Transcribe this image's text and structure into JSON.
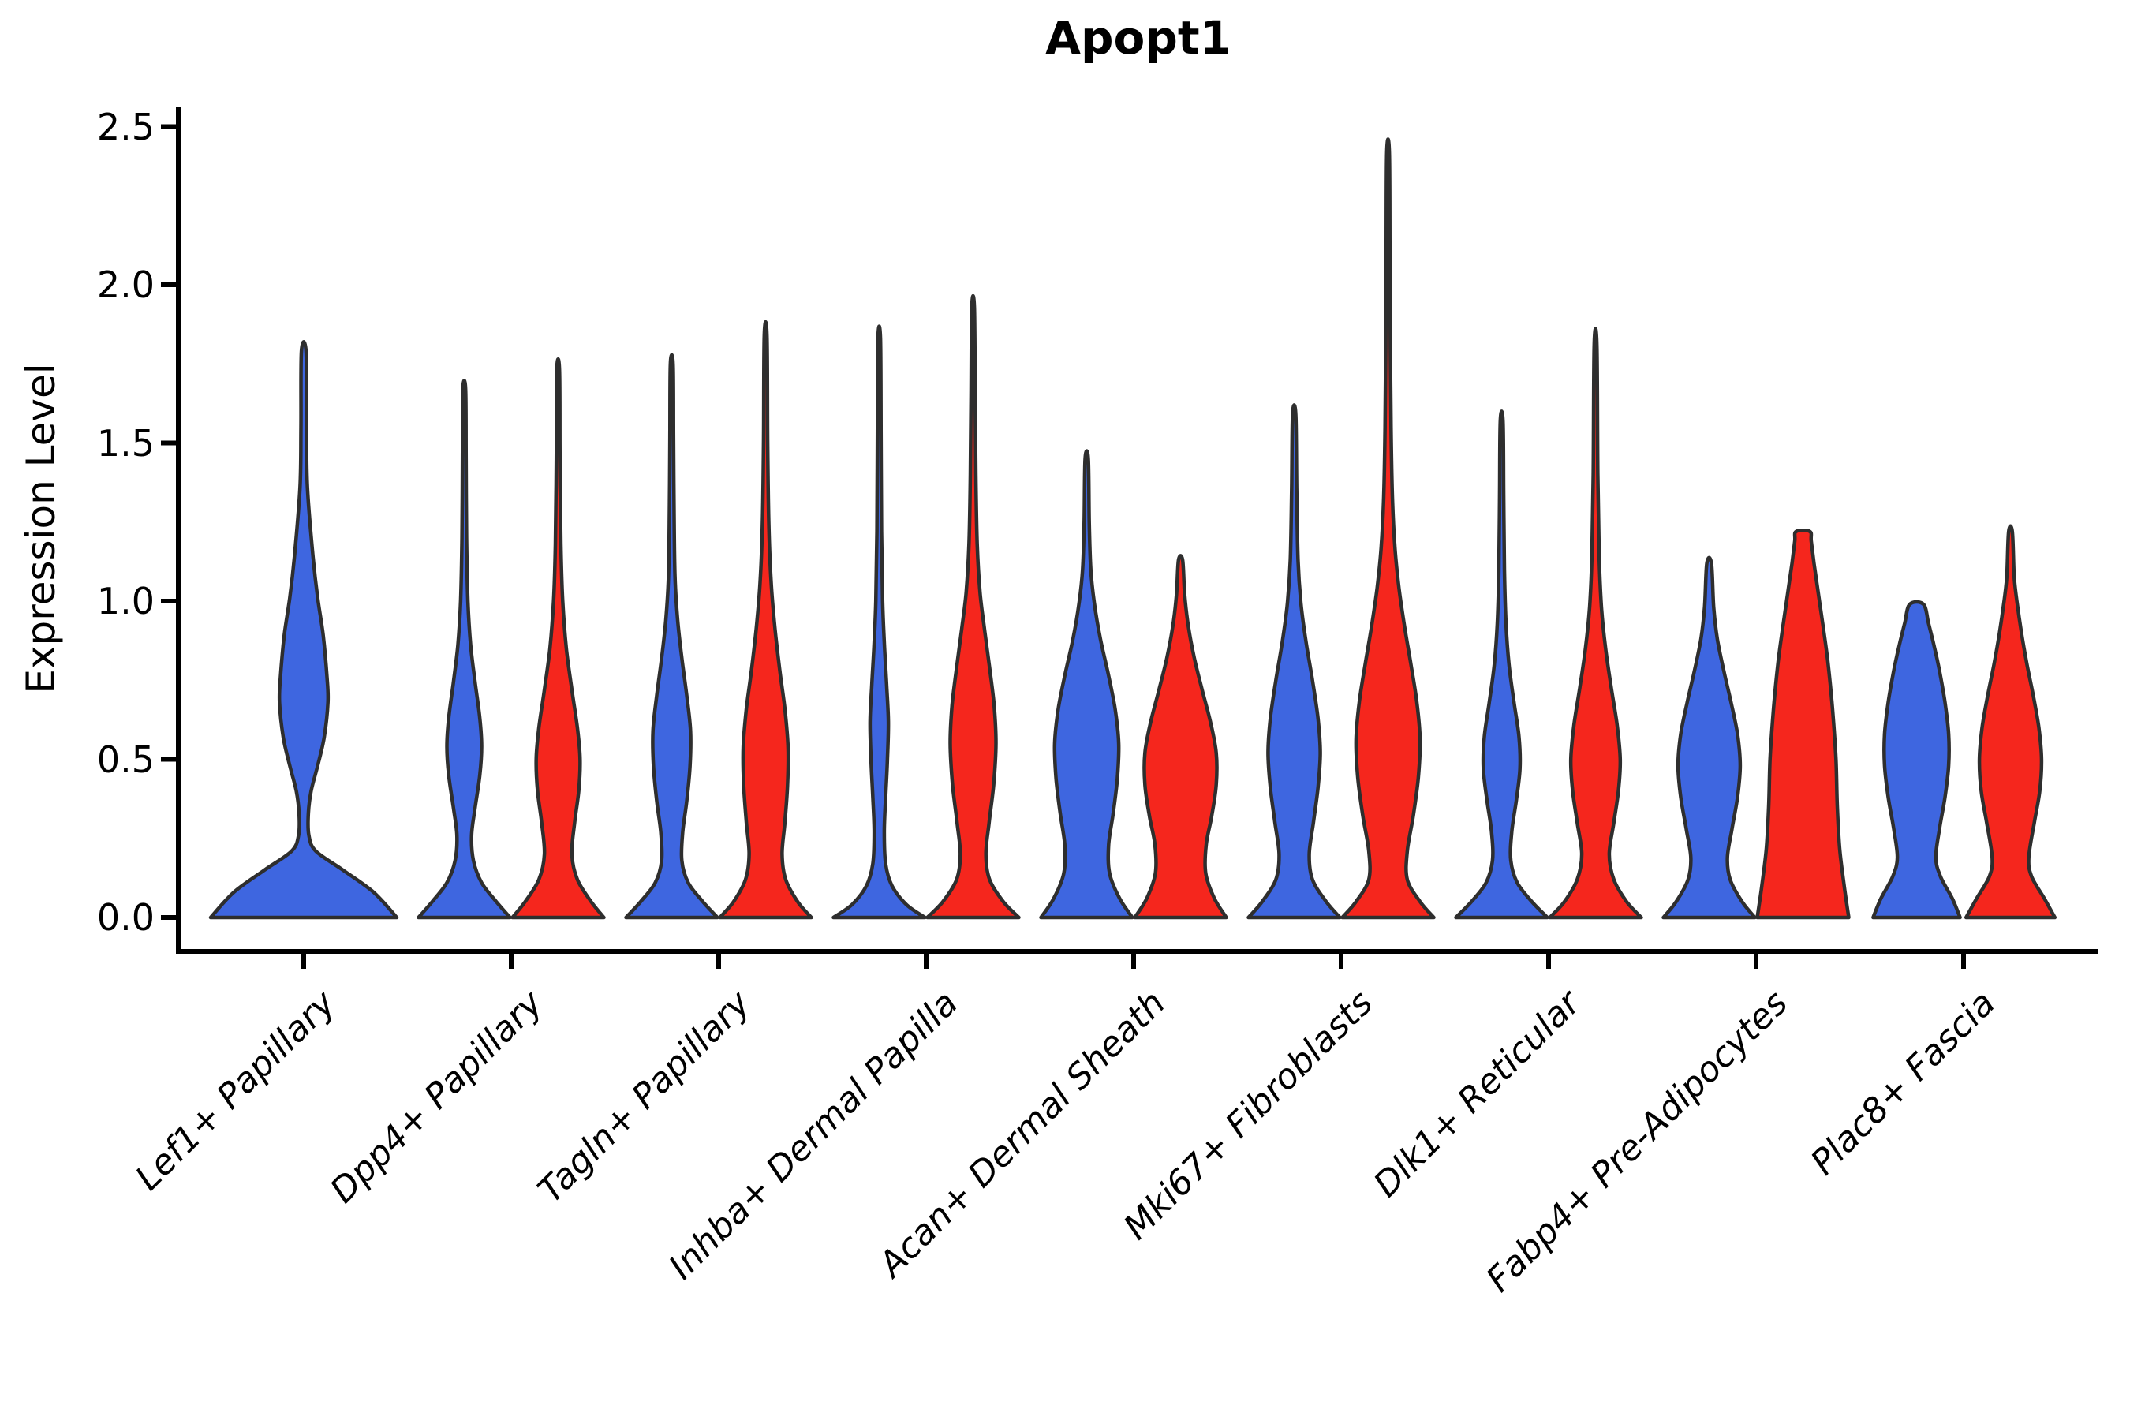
{
  "title": "Apopt1",
  "y_axis": {
    "label": "Expression Level",
    "tick_labels": [
      "0.0",
      "0.5",
      "1.0",
      "1.5",
      "2.0",
      "2.5"
    ]
  },
  "colors": {
    "blue": "#3E66E0",
    "red": "#F5261D",
    "outline": "#2E2E2E",
    "background": "#FFFFFF",
    "axis": "#000000"
  },
  "chart_data": {
    "type": "violin",
    "title": "Apopt1",
    "ylabel": "Expression Level",
    "xlabel": "",
    "ylim": [
      -0.12,
      2.56
    ],
    "yticks": [
      0.0,
      0.5,
      1.0,
      1.5,
      2.0,
      2.5
    ],
    "grid": false,
    "legend_position": "none",
    "series": [
      {
        "name": "blue",
        "color": "#3E66E0"
      },
      {
        "name": "red",
        "color": "#F5261D"
      }
    ],
    "categories": [
      "Lef1+ Papillary",
      "Dpp4+ Papillary",
      "Tagln+ Papillary",
      "Inhba+ Dermal Papilla",
      "Acan+ Dermal Sheath",
      "Mki67+ Fibroblasts",
      "Dlk1+ Reticular",
      "Fabp4+ Pre-Adipocytes",
      "Plac8+ Fascia"
    ],
    "violins": [
      {
        "category": "Lef1+ Papillary",
        "blue": {
          "max": 1.79,
          "profile": [
            [
              0,
              1.0
            ],
            [
              0.08,
              0.75
            ],
            [
              0.15,
              0.42
            ],
            [
              0.21,
              0.13
            ],
            [
              0.26,
              0.055
            ],
            [
              0.33,
              0.05
            ],
            [
              0.4,
              0.08
            ],
            [
              0.48,
              0.15
            ],
            [
              0.57,
              0.22
            ],
            [
              0.68,
              0.26
            ],
            [
              0.76,
              0.25
            ],
            [
              0.89,
              0.21
            ],
            [
              1.01,
              0.15
            ],
            [
              1.14,
              0.1
            ],
            [
              1.36,
              0.04
            ],
            [
              1.55,
              0.03
            ],
            [
              1.79,
              0.025
            ]
          ]
        },
        "red": null
      },
      {
        "category": "Dpp4+ Papillary",
        "blue": {
          "max": 1.67,
          "profile": [
            [
              0,
              1.0
            ],
            [
              0.05,
              0.7
            ],
            [
              0.11,
              0.38
            ],
            [
              0.18,
              0.2
            ],
            [
              0.26,
              0.16
            ],
            [
              0.35,
              0.24
            ],
            [
              0.45,
              0.34
            ],
            [
              0.54,
              0.38
            ],
            [
              0.63,
              0.34
            ],
            [
              0.74,
              0.24
            ],
            [
              0.86,
              0.14
            ],
            [
              1.0,
              0.08
            ],
            [
              1.2,
              0.05
            ],
            [
              1.45,
              0.04
            ],
            [
              1.67,
              0.03
            ]
          ]
        },
        "red": {
          "max": 1.73,
          "profile": [
            [
              0,
              1.0
            ],
            [
              0.05,
              0.72
            ],
            [
              0.12,
              0.42
            ],
            [
              0.2,
              0.3
            ],
            [
              0.3,
              0.36
            ],
            [
              0.4,
              0.45
            ],
            [
              0.5,
              0.48
            ],
            [
              0.6,
              0.42
            ],
            [
              0.72,
              0.3
            ],
            [
              0.85,
              0.18
            ],
            [
              1.0,
              0.1
            ],
            [
              1.18,
              0.06
            ],
            [
              1.45,
              0.04
            ],
            [
              1.73,
              0.03
            ]
          ]
        }
      },
      {
        "category": "Tagln+ Papillary",
        "blue": {
          "max": 1.75,
          "profile": [
            [
              0,
              1.0
            ],
            [
              0.05,
              0.68
            ],
            [
              0.11,
              0.36
            ],
            [
              0.18,
              0.22
            ],
            [
              0.27,
              0.24
            ],
            [
              0.37,
              0.33
            ],
            [
              0.48,
              0.4
            ],
            [
              0.59,
              0.41
            ],
            [
              0.7,
              0.33
            ],
            [
              0.82,
              0.22
            ],
            [
              0.94,
              0.13
            ],
            [
              1.08,
              0.07
            ],
            [
              1.3,
              0.05
            ],
            [
              1.52,
              0.04
            ],
            [
              1.75,
              0.03
            ]
          ]
        },
        "red": {
          "max": 1.84,
          "profile": [
            [
              0,
              1.0
            ],
            [
              0.05,
              0.7
            ],
            [
              0.12,
              0.44
            ],
            [
              0.2,
              0.36
            ],
            [
              0.3,
              0.42
            ],
            [
              0.42,
              0.48
            ],
            [
              0.54,
              0.49
            ],
            [
              0.66,
              0.42
            ],
            [
              0.78,
              0.31
            ],
            [
              0.92,
              0.2
            ],
            [
              1.06,
              0.12
            ],
            [
              1.24,
              0.07
            ],
            [
              1.5,
              0.045
            ],
            [
              1.84,
              0.03
            ]
          ]
        }
      },
      {
        "category": "Inhba+ Dermal Papilla",
        "blue": {
          "max": 1.83,
          "profile": [
            [
              0,
              1.0
            ],
            [
              0.04,
              0.6
            ],
            [
              0.1,
              0.28
            ],
            [
              0.17,
              0.14
            ],
            [
              0.27,
              0.11
            ],
            [
              0.38,
              0.14
            ],
            [
              0.5,
              0.18
            ],
            [
              0.62,
              0.2
            ],
            [
              0.74,
              0.16
            ],
            [
              0.87,
              0.11
            ],
            [
              1.0,
              0.075
            ],
            [
              1.22,
              0.05
            ],
            [
              1.52,
              0.04
            ],
            [
              1.83,
              0.027
            ]
          ]
        },
        "red": {
          "max": 1.93,
          "profile": [
            [
              0,
              1.0
            ],
            [
              0.05,
              0.66
            ],
            [
              0.12,
              0.36
            ],
            [
              0.2,
              0.28
            ],
            [
              0.3,
              0.35
            ],
            [
              0.42,
              0.45
            ],
            [
              0.55,
              0.5
            ],
            [
              0.67,
              0.46
            ],
            [
              0.79,
              0.36
            ],
            [
              0.91,
              0.25
            ],
            [
              1.03,
              0.15
            ],
            [
              1.18,
              0.09
            ],
            [
              1.4,
              0.06
            ],
            [
              1.65,
              0.045
            ],
            [
              1.93,
              0.028
            ]
          ]
        }
      },
      {
        "category": "Acan+ Dermal Sheath",
        "blue": {
          "max": 1.45,
          "profile": [
            [
              0,
              1.0
            ],
            [
              0.06,
              0.72
            ],
            [
              0.14,
              0.5
            ],
            [
              0.23,
              0.48
            ],
            [
              0.33,
              0.58
            ],
            [
              0.44,
              0.67
            ],
            [
              0.55,
              0.7
            ],
            [
              0.66,
              0.62
            ],
            [
              0.77,
              0.47
            ],
            [
              0.88,
              0.3
            ],
            [
              0.99,
              0.17
            ],
            [
              1.1,
              0.09
            ],
            [
              1.25,
              0.055
            ],
            [
              1.45,
              0.035
            ]
          ]
        },
        "red": {
          "max": 1.13,
          "profile": [
            [
              0,
              1.0
            ],
            [
              0.06,
              0.74
            ],
            [
              0.14,
              0.55
            ],
            [
              0.23,
              0.56
            ],
            [
              0.32,
              0.68
            ],
            [
              0.42,
              0.78
            ],
            [
              0.52,
              0.78
            ],
            [
              0.62,
              0.65
            ],
            [
              0.72,
              0.47
            ],
            [
              0.82,
              0.3
            ],
            [
              0.92,
              0.17
            ],
            [
              1.02,
              0.09
            ],
            [
              1.13,
              0.045
            ]
          ]
        }
      },
      {
        "category": "Mki67+ Fibroblasts",
        "blue": {
          "max": 1.59,
          "profile": [
            [
              0,
              1.0
            ],
            [
              0.05,
              0.7
            ],
            [
              0.12,
              0.4
            ],
            [
              0.2,
              0.33
            ],
            [
              0.3,
              0.42
            ],
            [
              0.41,
              0.52
            ],
            [
              0.52,
              0.57
            ],
            [
              0.63,
              0.52
            ],
            [
              0.75,
              0.4
            ],
            [
              0.87,
              0.26
            ],
            [
              0.99,
              0.15
            ],
            [
              1.13,
              0.085
            ],
            [
              1.35,
              0.055
            ],
            [
              1.59,
              0.035
            ]
          ]
        },
        "red": {
          "max": 2.42,
          "profile": [
            [
              0,
              1.0
            ],
            [
              0.05,
              0.7
            ],
            [
              0.12,
              0.42
            ],
            [
              0.21,
              0.42
            ],
            [
              0.32,
              0.55
            ],
            [
              0.44,
              0.66
            ],
            [
              0.56,
              0.7
            ],
            [
              0.68,
              0.63
            ],
            [
              0.8,
              0.5
            ],
            [
              0.92,
              0.36
            ],
            [
              1.04,
              0.24
            ],
            [
              1.17,
              0.15
            ],
            [
              1.33,
              0.095
            ],
            [
              1.55,
              0.065
            ],
            [
              1.8,
              0.05
            ],
            [
              2.1,
              0.04
            ],
            [
              2.42,
              0.028
            ]
          ]
        }
      },
      {
        "category": "Dlk1+ Reticular",
        "blue": {
          "max": 1.57,
          "profile": [
            [
              0,
              1.0
            ],
            [
              0.05,
              0.66
            ],
            [
              0.11,
              0.34
            ],
            [
              0.18,
              0.2
            ],
            [
              0.27,
              0.22
            ],
            [
              0.37,
              0.32
            ],
            [
              0.47,
              0.4
            ],
            [
              0.57,
              0.38
            ],
            [
              0.68,
              0.27
            ],
            [
              0.8,
              0.16
            ],
            [
              0.93,
              0.095
            ],
            [
              1.1,
              0.06
            ],
            [
              1.33,
              0.045
            ],
            [
              1.57,
              0.03
            ]
          ]
        },
        "red": {
          "max": 1.81,
          "profile": [
            [
              0,
              1.0
            ],
            [
              0.05,
              0.68
            ],
            [
              0.12,
              0.4
            ],
            [
              0.2,
              0.3
            ],
            [
              0.3,
              0.4
            ],
            [
              0.4,
              0.5
            ],
            [
              0.5,
              0.54
            ],
            [
              0.61,
              0.47
            ],
            [
              0.73,
              0.34
            ],
            [
              0.85,
              0.22
            ],
            [
              0.98,
              0.13
            ],
            [
              1.14,
              0.08
            ],
            [
              1.4,
              0.05
            ],
            [
              1.81,
              0.03
            ]
          ]
        }
      },
      {
        "category": "Fabp4+ Pre-Adipocytes",
        "blue": {
          "max": 1.12,
          "profile": [
            [
              0,
              1.0
            ],
            [
              0.05,
              0.72
            ],
            [
              0.12,
              0.46
            ],
            [
              0.19,
              0.4
            ],
            [
              0.28,
              0.5
            ],
            [
              0.38,
              0.62
            ],
            [
              0.48,
              0.68
            ],
            [
              0.58,
              0.62
            ],
            [
              0.68,
              0.48
            ],
            [
              0.78,
              0.32
            ],
            [
              0.88,
              0.18
            ],
            [
              0.98,
              0.1
            ],
            [
              1.12,
              0.05
            ]
          ]
        },
        "red": {
          "max": 1.22,
          "profile": [
            [
              0,
              1.0
            ],
            [
              0.1,
              0.9
            ],
            [
              0.22,
              0.8
            ],
            [
              0.35,
              0.75
            ],
            [
              0.5,
              0.72
            ],
            [
              0.65,
              0.65
            ],
            [
              0.8,
              0.55
            ],
            [
              0.92,
              0.44
            ],
            [
              1.03,
              0.33
            ],
            [
              1.12,
              0.24
            ],
            [
              1.19,
              0.18
            ],
            [
              1.22,
              0.15
            ]
          ]
        }
      },
      {
        "category": "Plac8+ Fascia",
        "blue": {
          "max": 0.99,
          "profile": [
            [
              0,
              0.95
            ],
            [
              0.06,
              0.78
            ],
            [
              0.13,
              0.52
            ],
            [
              0.19,
              0.42
            ],
            [
              0.28,
              0.5
            ],
            [
              0.38,
              0.62
            ],
            [
              0.48,
              0.7
            ],
            [
              0.58,
              0.7
            ],
            [
              0.68,
              0.62
            ],
            [
              0.78,
              0.5
            ],
            [
              0.86,
              0.38
            ],
            [
              0.93,
              0.26
            ],
            [
              0.99,
              0.15
            ]
          ]
        },
        "red": {
          "max": 1.22,
          "profile": [
            [
              0,
              0.97
            ],
            [
              0.06,
              0.74
            ],
            [
              0.13,
              0.46
            ],
            [
              0.19,
              0.4
            ],
            [
              0.3,
              0.52
            ],
            [
              0.4,
              0.64
            ],
            [
              0.5,
              0.68
            ],
            [
              0.6,
              0.62
            ],
            [
              0.7,
              0.5
            ],
            [
              0.8,
              0.36
            ],
            [
              0.9,
              0.24
            ],
            [
              1.0,
              0.14
            ],
            [
              1.08,
              0.08
            ],
            [
              1.22,
              0.04
            ]
          ]
        }
      }
    ]
  }
}
